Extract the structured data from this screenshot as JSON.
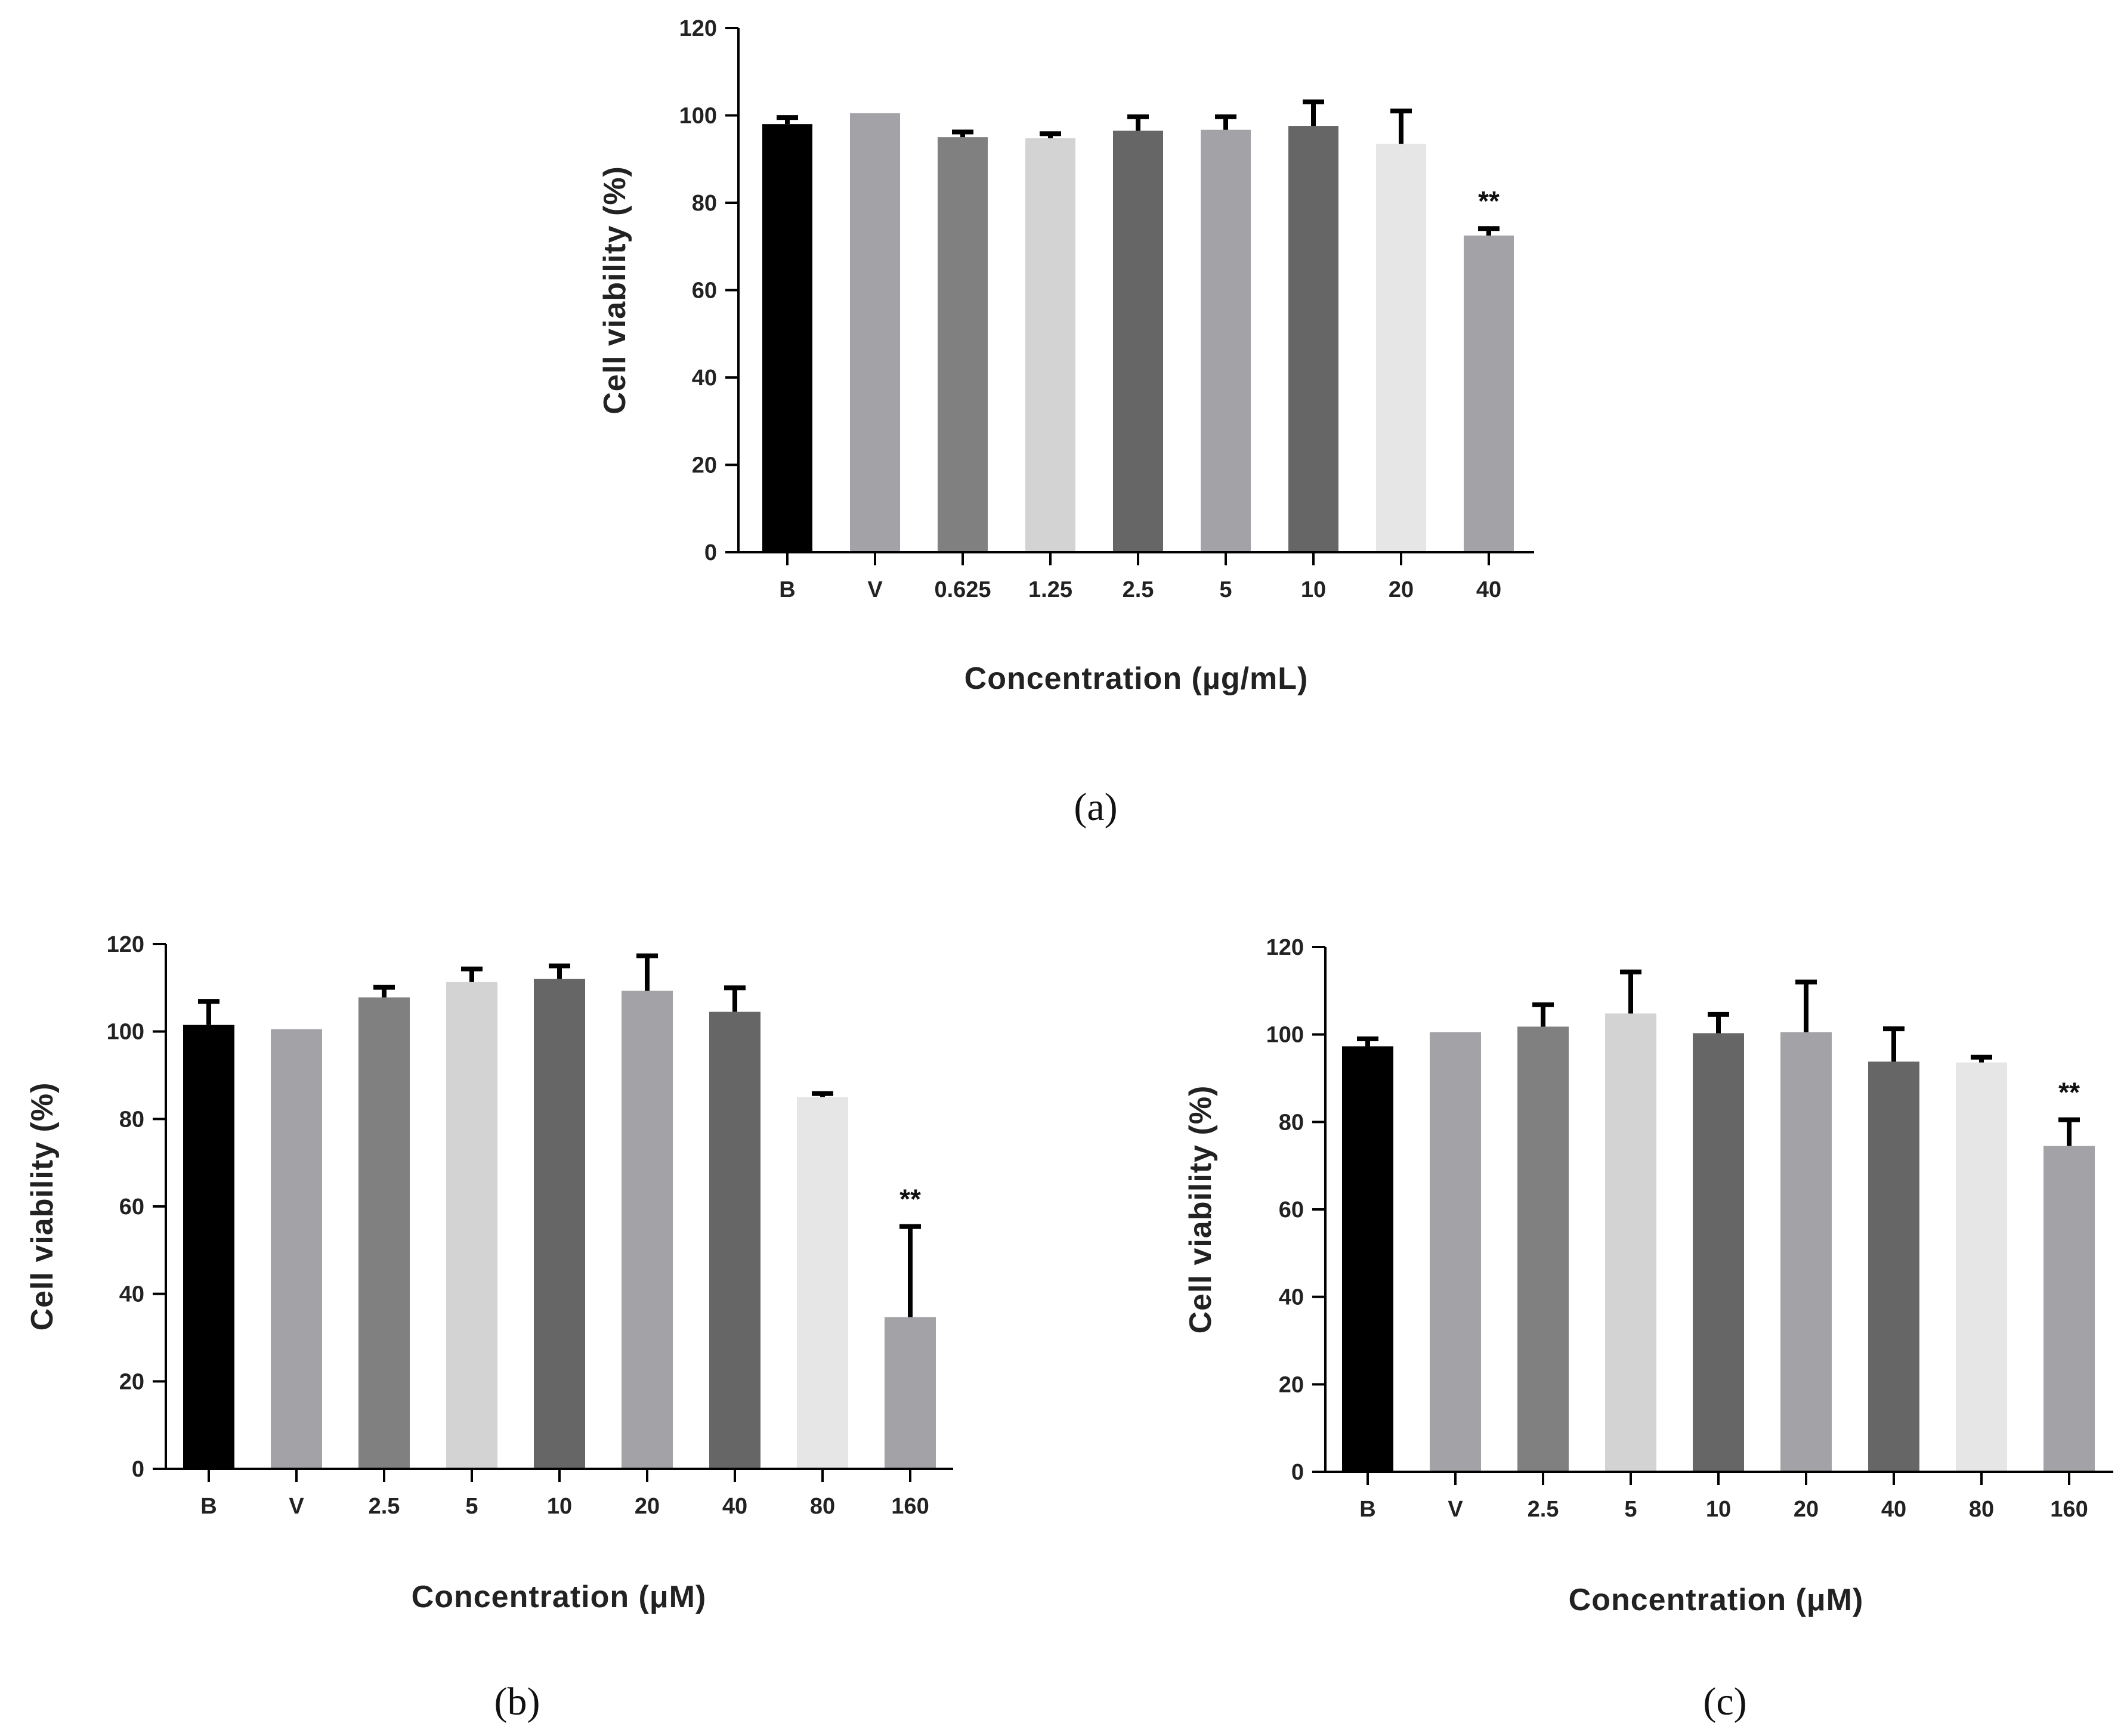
{
  "chart_data": [
    {
      "panel": "(a)",
      "type": "bar",
      "xlabel": "Concentration (µg/mL)",
      "ylabel": "Cell viability (%)",
      "ylim": [
        0,
        120
      ],
      "yticks": [
        0,
        20,
        40,
        60,
        80,
        100,
        120
      ],
      "categories": [
        "B",
        "V",
        "0.625",
        "1.25",
        "2.5",
        "5",
        "10",
        "20",
        "40"
      ],
      "values": [
        98,
        100.5,
        95,
        94.8,
        96.5,
        96.7,
        97.6,
        93.5,
        72.5
      ],
      "errors": [
        1.5,
        0,
        1.2,
        1.0,
        3.2,
        3.0,
        5.5,
        7.5,
        1.6
      ],
      "colors": [
        "#000000",
        "#a3a2a6",
        "#808080",
        "#d3d3d3",
        "#666666",
        "#a3a2a6",
        "#666666",
        "#e6e6e6",
        "#a3a2a6"
      ],
      "significance": [
        {
          "category": "40",
          "label": "**"
        }
      ]
    },
    {
      "panel": "(b)",
      "type": "bar",
      "xlabel": "Concentration (μM)",
      "ylabel": "Cell viability (%)",
      "ylim": [
        0,
        120
      ],
      "yticks": [
        0,
        20,
        40,
        60,
        80,
        100,
        120
      ],
      "categories": [
        "B",
        "V",
        "2.5",
        "5",
        "10",
        "20",
        "40",
        "80",
        "160"
      ],
      "values": [
        101.5,
        100.5,
        107.8,
        111.3,
        112,
        109.3,
        104.5,
        85,
        34.7
      ],
      "errors": [
        5.4,
        0,
        2.3,
        3.0,
        3.0,
        8.0,
        5.5,
        0.8,
        20.7
      ],
      "colors": [
        "#000000",
        "#a3a2a6",
        "#808080",
        "#d3d3d3",
        "#666666",
        "#a3a2a6",
        "#666666",
        "#e6e6e6",
        "#a3a2a6"
      ],
      "significance": [
        {
          "category": "160",
          "label": "**"
        }
      ]
    },
    {
      "panel": "(c)",
      "type": "bar",
      "xlabel": "Concentration (μM)",
      "ylabel": "Cell viability (%)",
      "ylim": [
        0,
        120
      ],
      "yticks": [
        0,
        20,
        40,
        60,
        80,
        100,
        120
      ],
      "categories": [
        "B",
        "V",
        "2.5",
        "5",
        "10",
        "20",
        "40",
        "80",
        "160"
      ],
      "values": [
        97.3,
        100.5,
        101.8,
        104.8,
        100.3,
        100.5,
        93.8,
        93.6,
        74.5
      ],
      "errors": [
        1.7,
        0,
        5.0,
        9.5,
        4.3,
        11.5,
        7.5,
        1.2,
        6.0
      ],
      "colors": [
        "#000000",
        "#a3a2a6",
        "#808080",
        "#d3d3d3",
        "#666666",
        "#a3a2a6",
        "#666666",
        "#e6e6e6",
        "#a3a2a6"
      ],
      "significance": [
        {
          "category": "160",
          "label": "**"
        }
      ]
    }
  ]
}
